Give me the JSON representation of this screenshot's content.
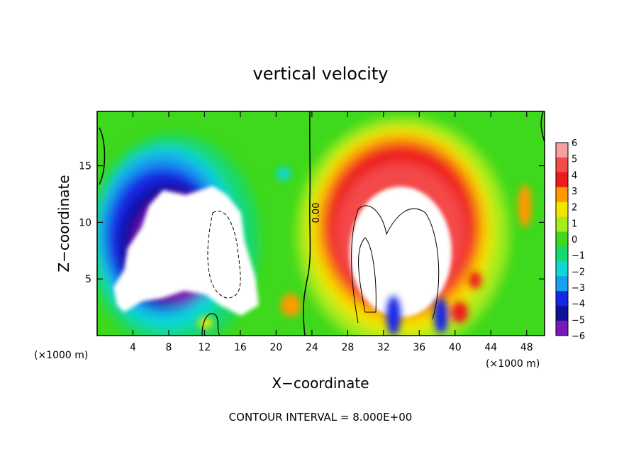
{
  "chart_data": {
    "type": "heatmap",
    "title": "vertical velocity",
    "xlabel": "X−coordinate",
    "ylabel": "Z−coordinate",
    "x_unit_left": "(×1000 m)",
    "x_unit_right": "(×1000 m)",
    "xlim": [
      0,
      50
    ],
    "ylim": [
      0,
      19.8
    ],
    "x_ticks": [
      4,
      8,
      12,
      16,
      20,
      24,
      28,
      32,
      36,
      40,
      44,
      48
    ],
    "x_tick_labels": [
      "4",
      "8",
      "12",
      "16",
      "20",
      "24",
      "28",
      "32",
      "36",
      "40",
      "44",
      "48"
    ],
    "y_ticks": [
      5,
      10,
      15
    ],
    "y_tick_labels": [
      "5",
      "10",
      "15"
    ],
    "colorbar": {
      "levels": [
        6,
        5,
        4,
        3,
        2,
        1,
        0,
        -1,
        -2,
        -3,
        -4,
        -5,
        -6
      ],
      "labels": [
        "6",
        "5",
        "4",
        "3",
        "2",
        "1",
        "0",
        "−1",
        "−2",
        "−3",
        "−4",
        "−5",
        "−6"
      ],
      "colors": [
        "#f7a0a0",
        "#f44a4a",
        "#ee1b1b",
        "#ff9a00",
        "#f2e600",
        "#a6ec1a",
        "#3ed81c",
        "#15d86f",
        "#0fd8d4",
        "#16a0f0",
        "#1228e6",
        "#101098",
        "#7a18b8"
      ]
    },
    "contour_label": "0.00",
    "footer": "CONTOUR INTERVAL = 8.000E+00",
    "features": [
      {
        "kind": "downdraft",
        "x": 11,
        "z": 8.5
      },
      {
        "kind": "updraft",
        "x": 33,
        "z": 8
      }
    ]
  }
}
